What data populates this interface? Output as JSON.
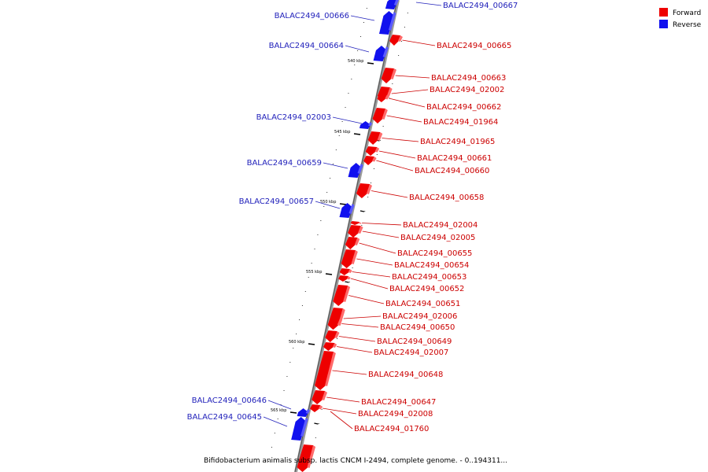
{
  "legend": {
    "forward_label": "Forward",
    "reverse_label": "Reverse",
    "forward_color": "#ee0000",
    "reverse_color": "#1111ee"
  },
  "caption": "Bifidobacterium animalis subsp. lactis CNCM I-2494, complete genome. - 0..194311...",
  "ticks": [
    "540 kbp",
    "545 kbp",
    "550 kbp",
    "555 kbp",
    "560 kbp",
    "565 kbp"
  ],
  "reverse_genes": [
    "BALAC2494_00667",
    "BALAC2494_00666",
    "BALAC2494_00664",
    "BALAC2494_02003",
    "BALAC2494_00659",
    "BALAC2494_00657",
    "BALAC2494_00646",
    "BALAC2494_00645"
  ],
  "forward_genes": [
    "BALAC2494_00665",
    "BALAC2494_00663",
    "BALAC2494_02002",
    "BALAC2494_00662",
    "BALAC2494_01964",
    "BALAC2494_01965",
    "BALAC2494_00661",
    "BALAC2494_00660",
    "BALAC2494_00658",
    "BALAC2494_02004",
    "BALAC2494_02005",
    "BALAC2494_00655",
    "BALAC2494_00654",
    "BALAC2494_00653",
    "BALAC2494_00652",
    "BALAC2494_00651",
    "BALAC2494_02006",
    "BALAC2494_00650",
    "BALAC2494_00649",
    "BALAC2494_02007",
    "BALAC2494_00648",
    "BALAC2494_00647",
    "BALAC2494_02008",
    "BALAC2494_01760"
  ]
}
